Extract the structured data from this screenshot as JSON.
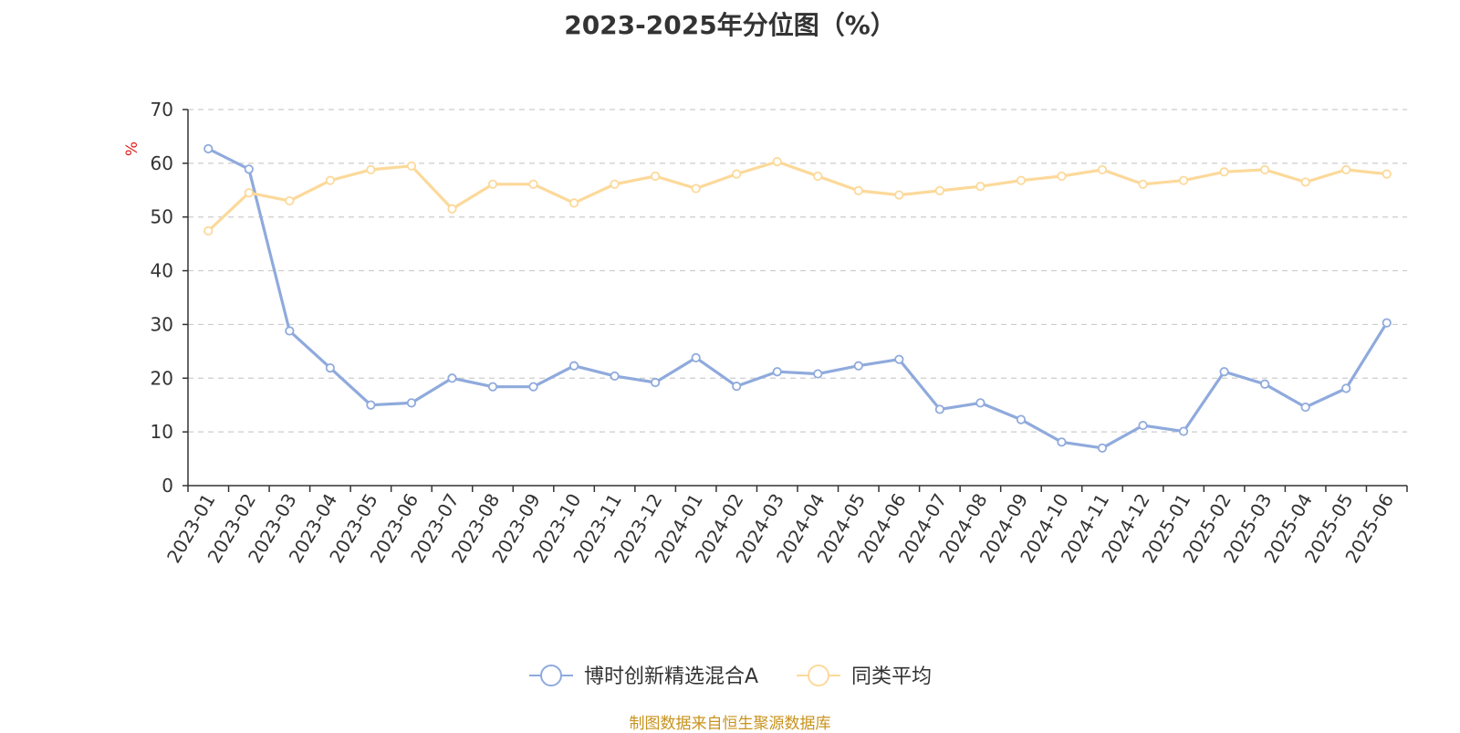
{
  "chart_data": {
    "type": "line",
    "title": "2023-2025年分位图（%）",
    "ylabel": "%",
    "ylim": [
      0,
      70
    ],
    "yticks": [
      0,
      10,
      20,
      30,
      40,
      50,
      60,
      70
    ],
    "grid": true,
    "legend_position": "bottom",
    "categories": [
      "2023-01",
      "2023-02",
      "2023-03",
      "2023-04",
      "2023-05",
      "2023-06",
      "2023-07",
      "2023-08",
      "2023-09",
      "2023-10",
      "2023-11",
      "2023-12",
      "2024-01",
      "2024-02",
      "2024-03",
      "2024-04",
      "2024-05",
      "2024-06",
      "2024-07",
      "2024-08",
      "2024-09",
      "2024-10",
      "2024-11",
      "2024-12",
      "2025-01",
      "2025-02",
      "2025-03",
      "2025-04",
      "2025-05",
      "2025-06"
    ],
    "series": [
      {
        "name": "博时创新精选混合A",
        "color": "#8faadc",
        "values": [
          62.7,
          58.9,
          28.8,
          21.9,
          15.0,
          15.4,
          20.0,
          18.4,
          18.4,
          22.3,
          20.4,
          19.2,
          23.8,
          18.5,
          21.2,
          20.8,
          22.3,
          23.5,
          14.2,
          15.4,
          12.3,
          8.1,
          7.0,
          11.2,
          10.1,
          21.2,
          18.9,
          14.6,
          18.1,
          30.3
        ]
      },
      {
        "name": "同类平均",
        "color": "#fcd99a",
        "values": [
          47.4,
          54.5,
          53.0,
          56.8,
          58.8,
          59.5,
          51.5,
          56.1,
          56.1,
          52.6,
          56.1,
          57.6,
          55.3,
          58.0,
          60.3,
          57.6,
          54.9,
          54.1,
          54.9,
          55.7,
          56.8,
          57.6,
          58.8,
          56.1,
          56.8,
          58.4,
          58.8,
          56.5,
          58.8,
          58.0
        ]
      }
    ]
  },
  "source_note": "制图数据来自恒生聚源数据库"
}
